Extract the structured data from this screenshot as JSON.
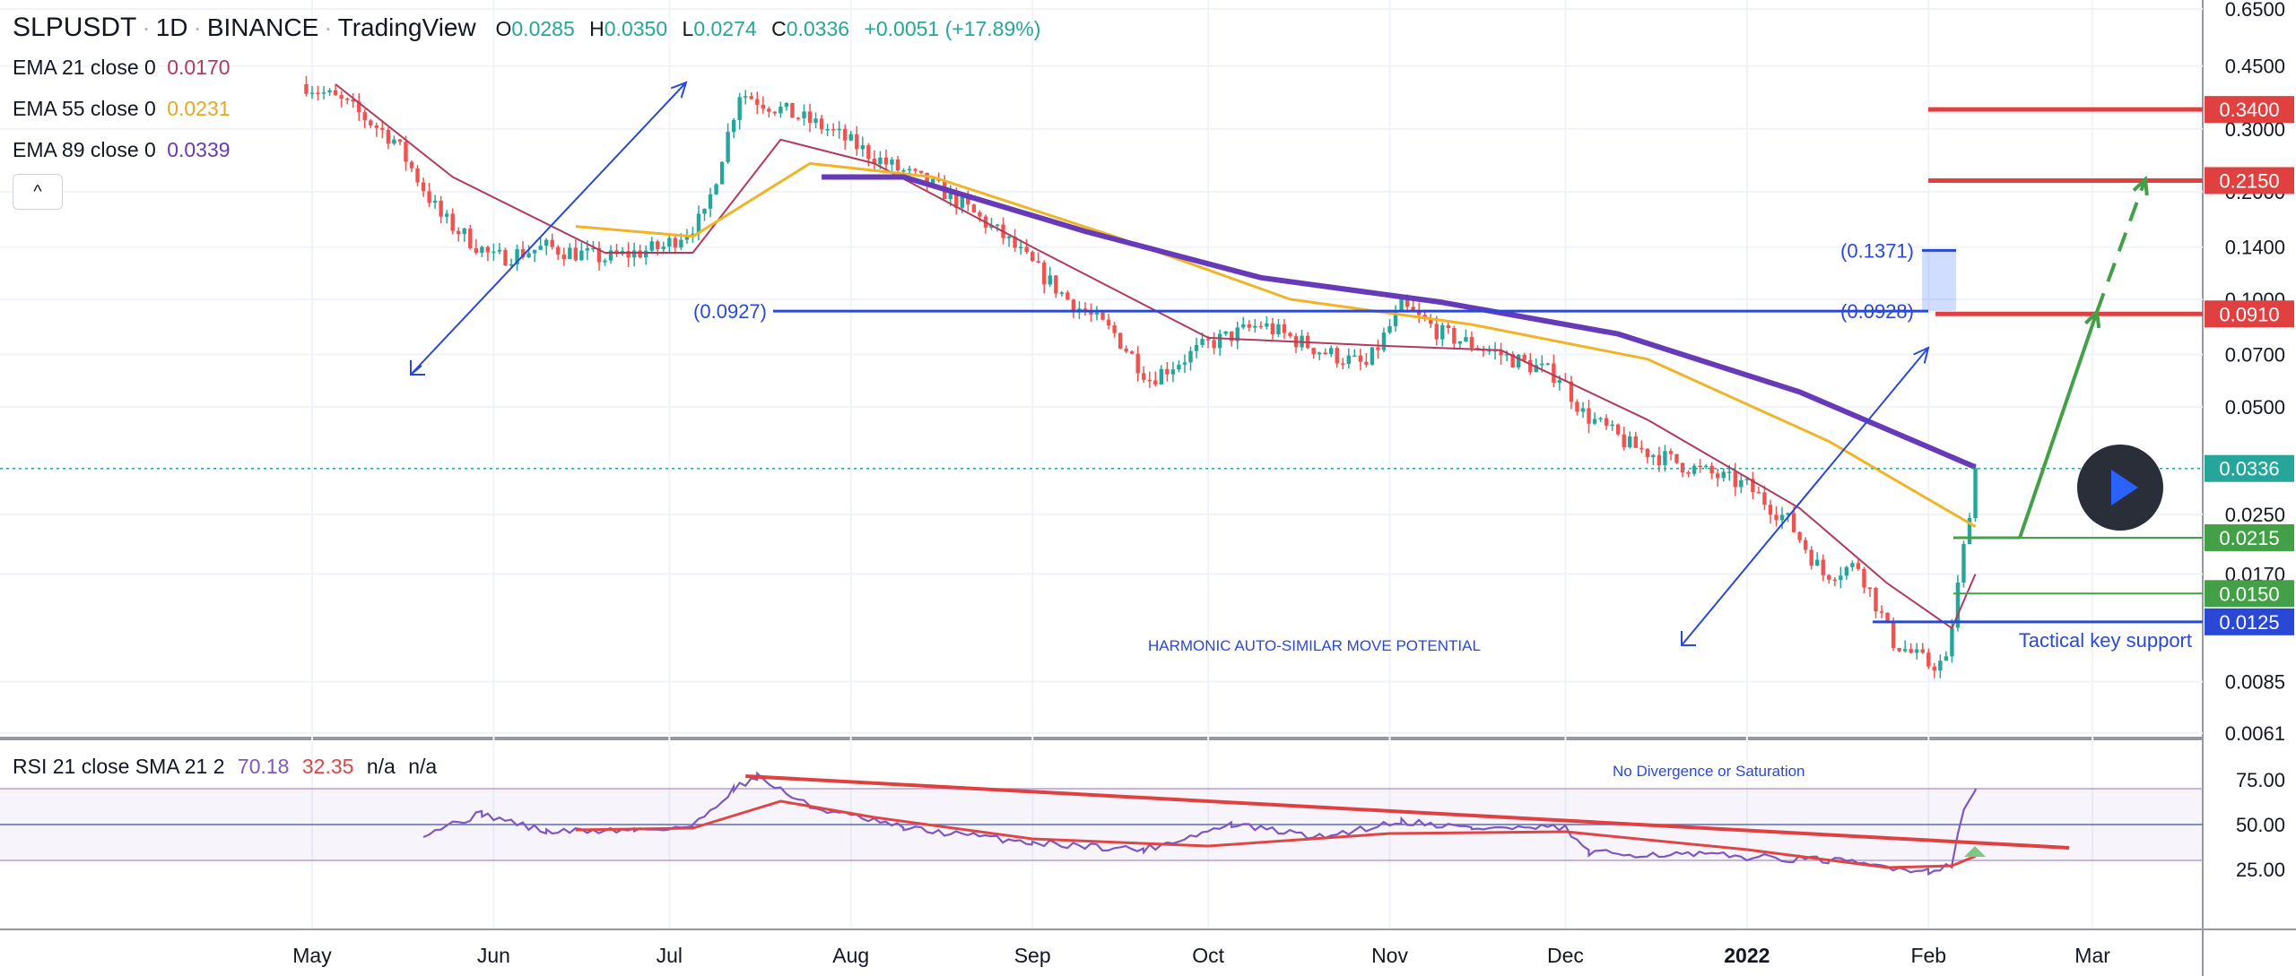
{
  "header": {
    "symbol": "SLPUSDT",
    "interval": "1D",
    "exchange": "BINANCE",
    "source": "TradingView",
    "o_label": "O",
    "o_value": "0.0285",
    "h_label": "H",
    "h_value": "0.0350",
    "l_label": "L",
    "l_value": "0.0274",
    "c_label": "C",
    "c_value": "0.0336",
    "change": "+0.0051 (+17.89%)"
  },
  "indicators": [
    {
      "label": "EMA 21 close 0",
      "value": "0.0170",
      "color": "#b23a5a"
    },
    {
      "label": "EMA 55 close 0",
      "value": "0.0231",
      "color": "#f0b429"
    },
    {
      "label": "EMA 89 close 0",
      "value": "0.0339",
      "color": "#673ab7"
    }
  ],
  "collapse_label": "^",
  "rsi_legend": {
    "label": "RSI 21 close SMA 21 2",
    "rsi": "70.18",
    "sma": "32.35",
    "na1": "n/a",
    "na2": "n/a"
  },
  "colors": {
    "up": "#26a69a",
    "down": "#ef5350",
    "ema21": "#b23a5a",
    "ema55": "#f0b429",
    "ema89": "#673ab7",
    "blue": "#2948d6",
    "red": "#e04040",
    "green": "#43a047",
    "rsi_line": "#7e57c2",
    "rsi_sma": "#e04444"
  },
  "chart_data": {
    "type": "line",
    "title": "SLPUSDT · 1D · BINANCE",
    "x_labels": [
      "May",
      "Jun",
      "Jul",
      "Aug",
      "Sep",
      "Oct",
      "Nov",
      "Dec",
      "2022",
      "Feb",
      "Mar"
    ],
    "y_scale": "log",
    "y_ticks": [
      "0.6500",
      "0.4500",
      "0.3000",
      "0.2000",
      "0.1400",
      "0.1000",
      "0.0700",
      "0.0500",
      "0.0250",
      "0.0170",
      "0.0085",
      "0.0061"
    ],
    "price_labels": [
      {
        "value": "0.3400",
        "color": "#e04040"
      },
      {
        "value": "0.2150",
        "color": "#e04040"
      },
      {
        "value": "0.0910",
        "color": "#e04040"
      },
      {
        "value": "0.0336",
        "color": "#26a69a"
      },
      {
        "value": "0.0215",
        "color": "#43a047"
      },
      {
        "value": "0.0150",
        "color": "#43a047"
      },
      {
        "value": "0.0125",
        "color": "#2948d6"
      }
    ],
    "series": [
      {
        "name": "SLPUSDT close",
        "x": [
          "2021-04-30",
          "2021-05-07",
          "2021-05-15",
          "2021-05-23",
          "2021-06-01",
          "2021-06-10",
          "2021-06-20",
          "2021-06-30",
          "2021-07-07",
          "2021-07-13",
          "2021-07-20",
          "2021-07-28",
          "2021-08-07",
          "2021-08-17",
          "2021-08-27",
          "2021-09-07",
          "2021-09-15",
          "2021-09-21",
          "2021-10-01",
          "2021-10-10",
          "2021-10-20",
          "2021-10-28",
          "2021-11-03",
          "2021-11-10",
          "2021-11-20",
          "2021-11-30",
          "2021-12-04",
          "2021-12-12",
          "2021-12-22",
          "2022-01-01",
          "2022-01-08",
          "2022-01-14",
          "2022-01-20",
          "2022-01-26",
          "2022-02-01",
          "2022-02-04",
          "2022-02-07",
          "2022-02-09"
        ],
        "y": [
          0.4,
          0.35,
          0.28,
          0.17,
          0.13,
          0.14,
          0.13,
          0.14,
          0.17,
          0.38,
          0.34,
          0.3,
          0.24,
          0.2,
          0.15,
          0.1,
          0.08,
          0.06,
          0.075,
          0.085,
          0.072,
          0.065,
          0.095,
          0.08,
          0.07,
          0.061,
          0.048,
          0.039,
          0.034,
          0.03,
          0.024,
          0.017,
          0.018,
          0.011,
          0.0095,
          0.0096,
          0.02,
          0.0336
        ]
      },
      {
        "name": "EMA 21",
        "x": [
          "2021-05-05",
          "2021-05-25",
          "2021-06-20",
          "2021-07-05",
          "2021-07-20",
          "2021-08-05",
          "2021-09-01",
          "2021-10-01",
          "2021-11-01",
          "2021-11-20",
          "2021-12-15",
          "2022-01-10",
          "2022-01-25",
          "2022-02-05",
          "2022-02-09"
        ],
        "y": [
          0.4,
          0.22,
          0.135,
          0.135,
          0.28,
          0.24,
          0.14,
          0.078,
          0.074,
          0.072,
          0.046,
          0.026,
          0.016,
          0.012,
          0.017
        ]
      },
      {
        "name": "EMA 55",
        "x": [
          "2021-06-15",
          "2021-07-05",
          "2021-07-25",
          "2021-08-15",
          "2021-09-15",
          "2021-10-15",
          "2021-11-15",
          "2021-12-15",
          "2022-01-15",
          "2022-02-09"
        ],
        "y": [
          0.16,
          0.15,
          0.24,
          0.22,
          0.15,
          0.1,
          0.085,
          0.068,
          0.04,
          0.0231
        ]
      },
      {
        "name": "EMA 89",
        "x": [
          "2021-07-27",
          "2021-08-10",
          "2021-09-10",
          "2021-10-10",
          "2021-11-10",
          "2021-12-10",
          "2022-01-10",
          "2022-02-09"
        ],
        "y": [
          0.22,
          0.22,
          0.155,
          0.115,
          0.098,
          0.08,
          0.055,
          0.0339
        ]
      }
    ],
    "annotations": [
      {
        "text": "(0.0927)",
        "value": 0.0927,
        "color": "#2948d6"
      },
      {
        "text": "(0.0928)",
        "value": 0.0928,
        "color": "#2948d6"
      },
      {
        "text": "(0.1371)",
        "value": 0.1371,
        "color": "#2948d6"
      },
      {
        "text": "HARMONIC AUTO-SIMILAR MOVE POTENTIAL",
        "color": "#2948d6"
      },
      {
        "text": "Tactical key support",
        "color": "#2948d6"
      }
    ],
    "rsi": {
      "y_ticks": [
        "75.00",
        "50.00",
        "25.00"
      ],
      "ylim": [
        10,
        85
      ],
      "note": "No Divergence or Saturation",
      "rsi_x": [
        "2021-05-20",
        "2021-05-30",
        "2021-06-10",
        "2021-06-25",
        "2021-07-05",
        "2021-07-12",
        "2021-07-16",
        "2021-07-25",
        "2021-08-10",
        "2021-09-01",
        "2021-09-20",
        "2021-10-05",
        "2021-10-20",
        "2021-11-03",
        "2021-11-15",
        "2021-12-01",
        "2021-12-05",
        "2021-12-25",
        "2022-01-15",
        "2022-02-01",
        "2022-02-05",
        "2022-02-07",
        "2022-02-09"
      ],
      "rsi_y": [
        45,
        56,
        46,
        47,
        49,
        70,
        77,
        60,
        48,
        40,
        36,
        50,
        43,
        52,
        48,
        48,
        34,
        33,
        30,
        24,
        28,
        58,
        70.18
      ],
      "sma_x": [
        "2021-06-15",
        "2021-07-05",
        "2021-07-20",
        "2021-08-05",
        "2021-09-01",
        "2021-10-01",
        "2021-11-01",
        "2021-12-01",
        "2022-01-01",
        "2022-01-25",
        "2022-02-05",
        "2022-02-09"
      ],
      "sma_y": [
        47,
        48,
        63,
        54,
        42,
        38,
        45,
        46,
        36,
        26,
        27,
        32.35
      ]
    }
  }
}
